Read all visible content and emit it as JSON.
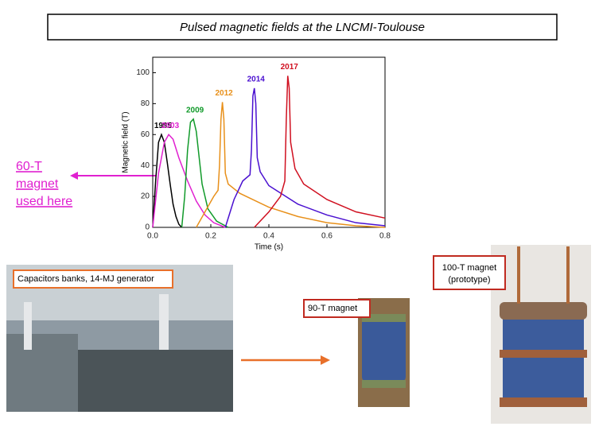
{
  "title": "Pulsed magnetic fields at the LNCMI-Toulouse",
  "chart_data": {
    "type": "line",
    "xlabel": "Time (s)",
    "ylabel": "Magnetic field (T)",
    "xlim": [
      0,
      0.8
    ],
    "ylim": [
      0,
      110
    ],
    "xticks": [
      {
        "value": 0,
        "label": "0.0"
      },
      {
        "value": 0.2,
        "label": "0.2"
      },
      {
        "value": 0.4,
        "label": "0.4"
      },
      {
        "value": 0.6,
        "label": "0.6"
      },
      {
        "value": 0.8,
        "label": "0.8"
      }
    ],
    "yticks": [
      0,
      20,
      40,
      60,
      80,
      100
    ],
    "series": [
      {
        "name": "1995",
        "color": "#000000",
        "x": [
          0,
          0.01,
          0.02,
          0.03,
          0.04,
          0.05,
          0.06,
          0.07,
          0.08,
          0.09,
          0.1
        ],
        "values": [
          0,
          30,
          55,
          60,
          55,
          42,
          28,
          15,
          7,
          2,
          0
        ]
      },
      {
        "name": "2003",
        "color": "#e020d0",
        "x": [
          0,
          0.02,
          0.04,
          0.055,
          0.07,
          0.09,
          0.12,
          0.15,
          0.18,
          0.21,
          0.25
        ],
        "values": [
          0,
          35,
          55,
          60,
          57,
          45,
          30,
          17,
          8,
          3,
          0
        ]
      },
      {
        "name": "2009",
        "color": "#119a2a",
        "x": [
          0.1,
          0.11,
          0.12,
          0.13,
          0.14,
          0.15,
          0.16,
          0.17,
          0.19,
          0.22,
          0.26
        ],
        "values": [
          0,
          20,
          50,
          68,
          70,
          62,
          45,
          28,
          12,
          4,
          0
        ]
      },
      {
        "name": "2012",
        "color": "#e8901a",
        "x": [
          0.15,
          0.18,
          0.21,
          0.225,
          0.23,
          0.235,
          0.24,
          0.245,
          0.25,
          0.26,
          0.3,
          0.4,
          0.5,
          0.6,
          0.7,
          0.8
        ],
        "values": [
          0,
          10,
          20,
          24,
          40,
          70,
          81,
          70,
          35,
          28,
          22,
          13,
          7,
          3,
          1,
          0
        ]
      },
      {
        "name": "2014",
        "color": "#4a10d0",
        "x": [
          0.25,
          0.28,
          0.31,
          0.335,
          0.34,
          0.345,
          0.35,
          0.355,
          0.36,
          0.37,
          0.4,
          0.5,
          0.6,
          0.7,
          0.8
        ],
        "values": [
          0,
          18,
          30,
          34,
          50,
          85,
          90,
          80,
          45,
          36,
          27,
          15,
          8,
          3,
          1
        ]
      },
      {
        "name": "2017",
        "color": "#d01020",
        "x": [
          0.35,
          0.4,
          0.44,
          0.455,
          0.46,
          0.465,
          0.47,
          0.475,
          0.49,
          0.52,
          0.6,
          0.7,
          0.8
        ],
        "values": [
          0,
          10,
          20,
          30,
          70,
          98,
          90,
          55,
          38,
          28,
          18,
          10,
          6
        ]
      }
    ]
  },
  "note": {
    "lines": [
      "60-T",
      "magnet",
      "used here"
    ]
  },
  "photos": [
    {
      "caption": [
        "Capacitors banks, 14-MJ generator"
      ]
    },
    {
      "caption": [
        "90-T magnet"
      ]
    },
    {
      "caption": [
        "100-T magnet",
        "(prototype)"
      ]
    }
  ]
}
